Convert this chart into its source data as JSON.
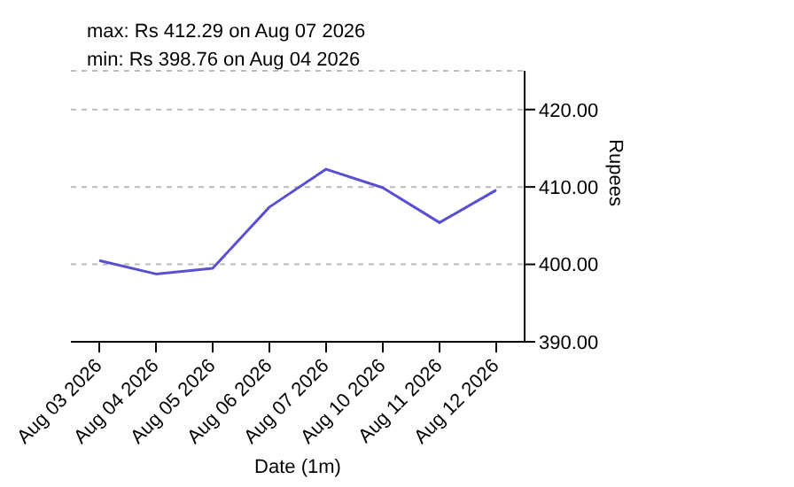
{
  "chart_data": {
    "type": "line",
    "annotations": [
      "max: Rs 412.29 on Aug 07 2026",
      "min: Rs 398.76 on Aug 04 2026"
    ],
    "xlabel": "Date (1m)",
    "ylabel": "Rupees",
    "categories": [
      "Aug 03 2026",
      "Aug 04 2026",
      "Aug 05 2026",
      "Aug 06 2026",
      "Aug 07 2026",
      "Aug 10 2026",
      "Aug 11 2026",
      "Aug 12 2026"
    ],
    "series": [
      {
        "color": "#5a4fcf",
        "values": [
          400.5,
          398.76,
          399.5,
          407.4,
          412.29,
          409.9,
          405.4,
          409.6
        ]
      }
    ],
    "ylim": [
      390,
      425
    ],
    "yticks": [
      {
        "value": 390,
        "label": "390.00"
      },
      {
        "value": 400,
        "label": "400.00"
      },
      {
        "value": 410,
        "label": "410.00"
      },
      {
        "value": 420,
        "label": "420.00"
      }
    ],
    "grid": "y",
    "marker": "none",
    "line_style": "solid"
  }
}
